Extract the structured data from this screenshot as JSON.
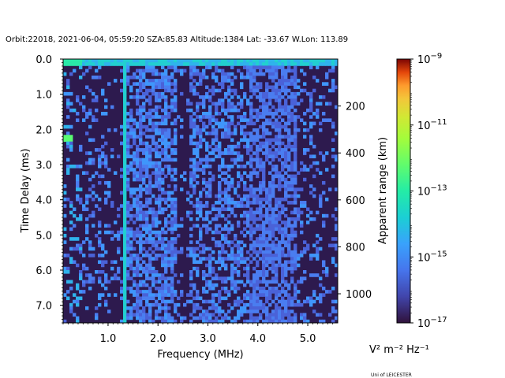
{
  "chart_data": {
    "type": "heatmap",
    "title": "Orbit:22018, 2021-06-04, 05:59:20 SZA:85.83 Altitude:1384 Lat: -33.67 W.Lon: 113.89",
    "xlabel": "Frequency (MHz)",
    "ylabel": "Time Delay (ms)",
    "y2label": "Apparent range (km)",
    "xlim": [
      0.1,
      5.6
    ],
    "ylim": [
      7.5,
      0.0
    ],
    "x_ticks": [
      "1.0",
      "2.0",
      "3.0",
      "4.0",
      "5.0"
    ],
    "y_ticks": [
      "0.0",
      "1.0",
      "2.0",
      "3.0",
      "4.0",
      "5.0",
      "6.0",
      "7.0"
    ],
    "y2_ticks": [
      "200",
      "400",
      "600",
      "800",
      "1000"
    ],
    "colorbar": {
      "scale": "log",
      "range": [
        1e-17,
        1e-09
      ],
      "colormap": "turbo",
      "ticks": [
        {
          "mant": "10",
          "exp": "−9",
          "value": 1e-09
        },
        {
          "mant": "10",
          "exp": "−11",
          "value": 1e-11
        },
        {
          "mant": "10",
          "exp": "−13",
          "value": 1e-13
        },
        {
          "mant": "10",
          "exp": "−15",
          "value": 1e-15
        },
        {
          "mant": "10",
          "exp": "−17",
          "value": 1e-17
        }
      ],
      "unit_label": "V² m⁻² Hz⁻¹"
    },
    "features": {
      "bright_band_delay_ms": 0.15,
      "bright_column_freq_mhz": 1.32,
      "ground_echo_spot": {
        "freq_mhz": 0.2,
        "delay_ms": 2.25
      },
      "noise_band_freq_mhz": [
        3.8,
        4.8
      ]
    }
  },
  "credit": "Uni of LEICESTER"
}
